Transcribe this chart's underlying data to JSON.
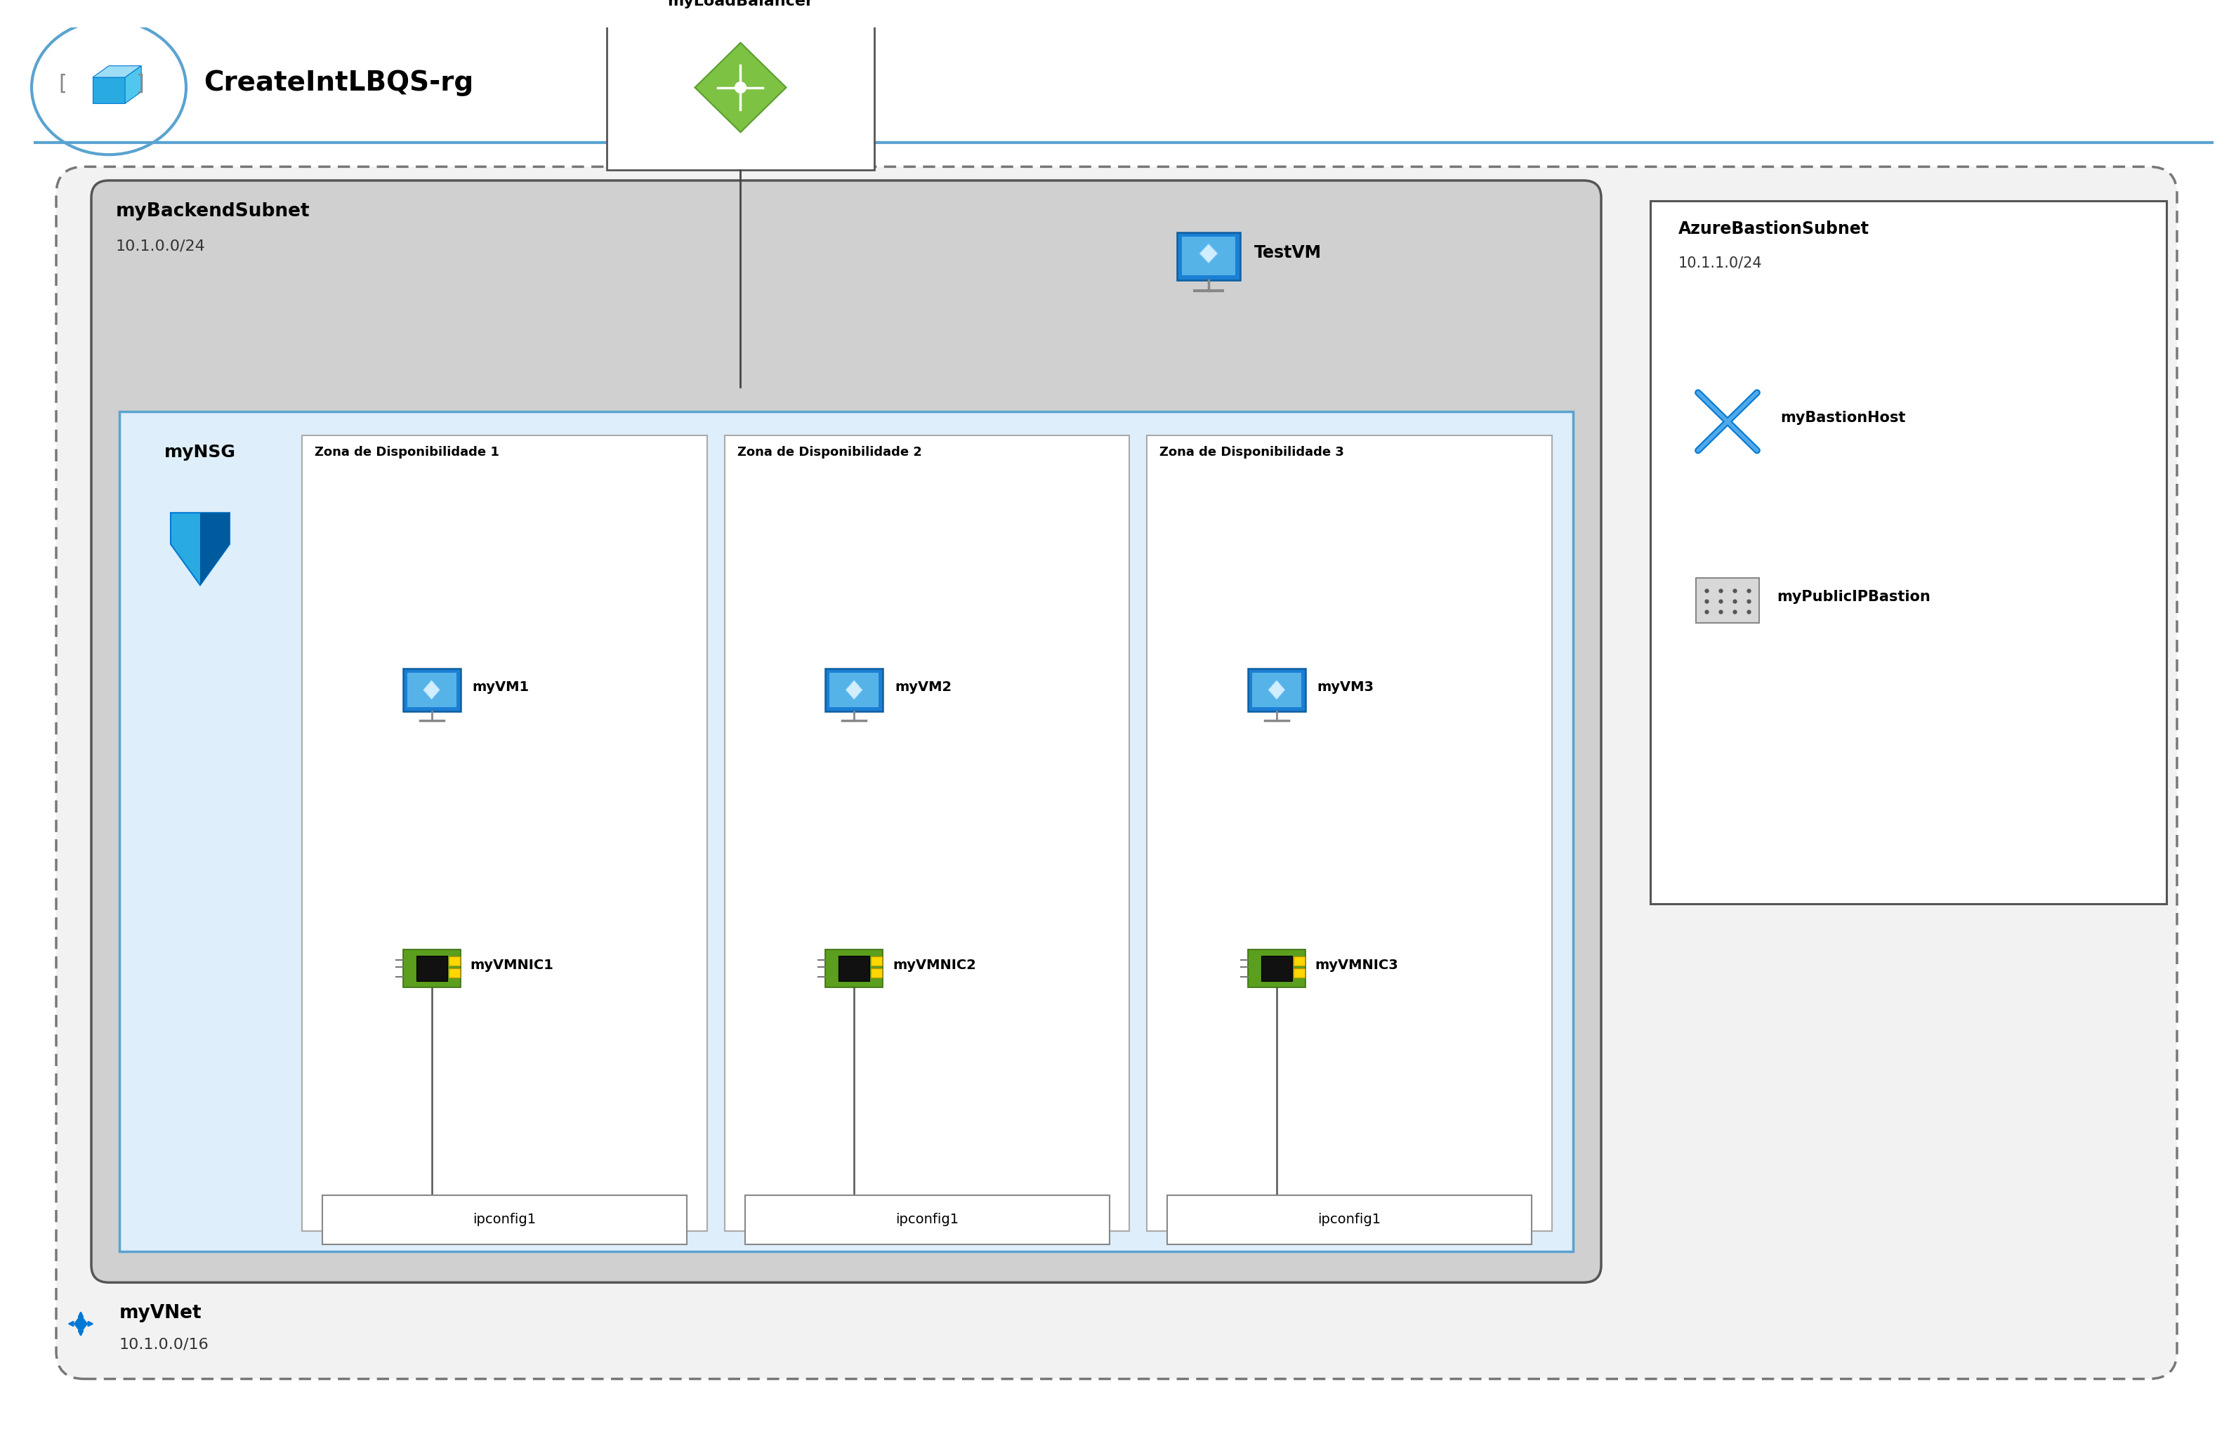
{
  "title": "CreateIntLBQS-rg",
  "bg_color": "#ffffff",
  "outer_border_color": "#5ba3d0",
  "vnet_bg": "#f2f2f2",
  "vnet_border": "#777777",
  "subnet_bg": "#d0d0d0",
  "subnet_border": "#555555",
  "inner_blue_bg": "#deeefa",
  "inner_blue_border": "#5ba3d0",
  "zone_bg": "#ffffff",
  "zone_border": "#aaaaaa",
  "ipconfig_bg": "#ffffff",
  "ipconfig_border": "#888888",
  "bastion_bg": "#ffffff",
  "bastion_border": "#555555",
  "lb_box_bg": "#ffffff",
  "lb_box_border": "#555555",
  "testvm_label": "TestVM",
  "lb_label": "myLoadBalancer",
  "vnet_label": "myVNet",
  "vnet_cidr": "10.1.0.0/16",
  "backend_subnet_label": "myBackendSubnet",
  "backend_cidr": "10.1.0.0/24",
  "nsg_label": "myNSG",
  "zones": [
    "Zona de Disponibilidade 1",
    "Zona de Disponibilidade 2",
    "Zona de Disponibilidade 3"
  ],
  "vm_labels": [
    "myVM1",
    "myVM2",
    "myVM3"
  ],
  "nic_labels": [
    "myVMNIC1",
    "myVMNIC2",
    "myVMNIC3"
  ],
  "ipconfig_labels": [
    "ipconfig1",
    "ipconfig1",
    "ipconfig1"
  ],
  "bastion_subnet_label": "AzureBastionSubnet",
  "bastion_cidr": "10.1.1.0/24",
  "bastion_host_label": "myBastionHost",
  "bastion_ip_label": "myPublicIPBastion"
}
